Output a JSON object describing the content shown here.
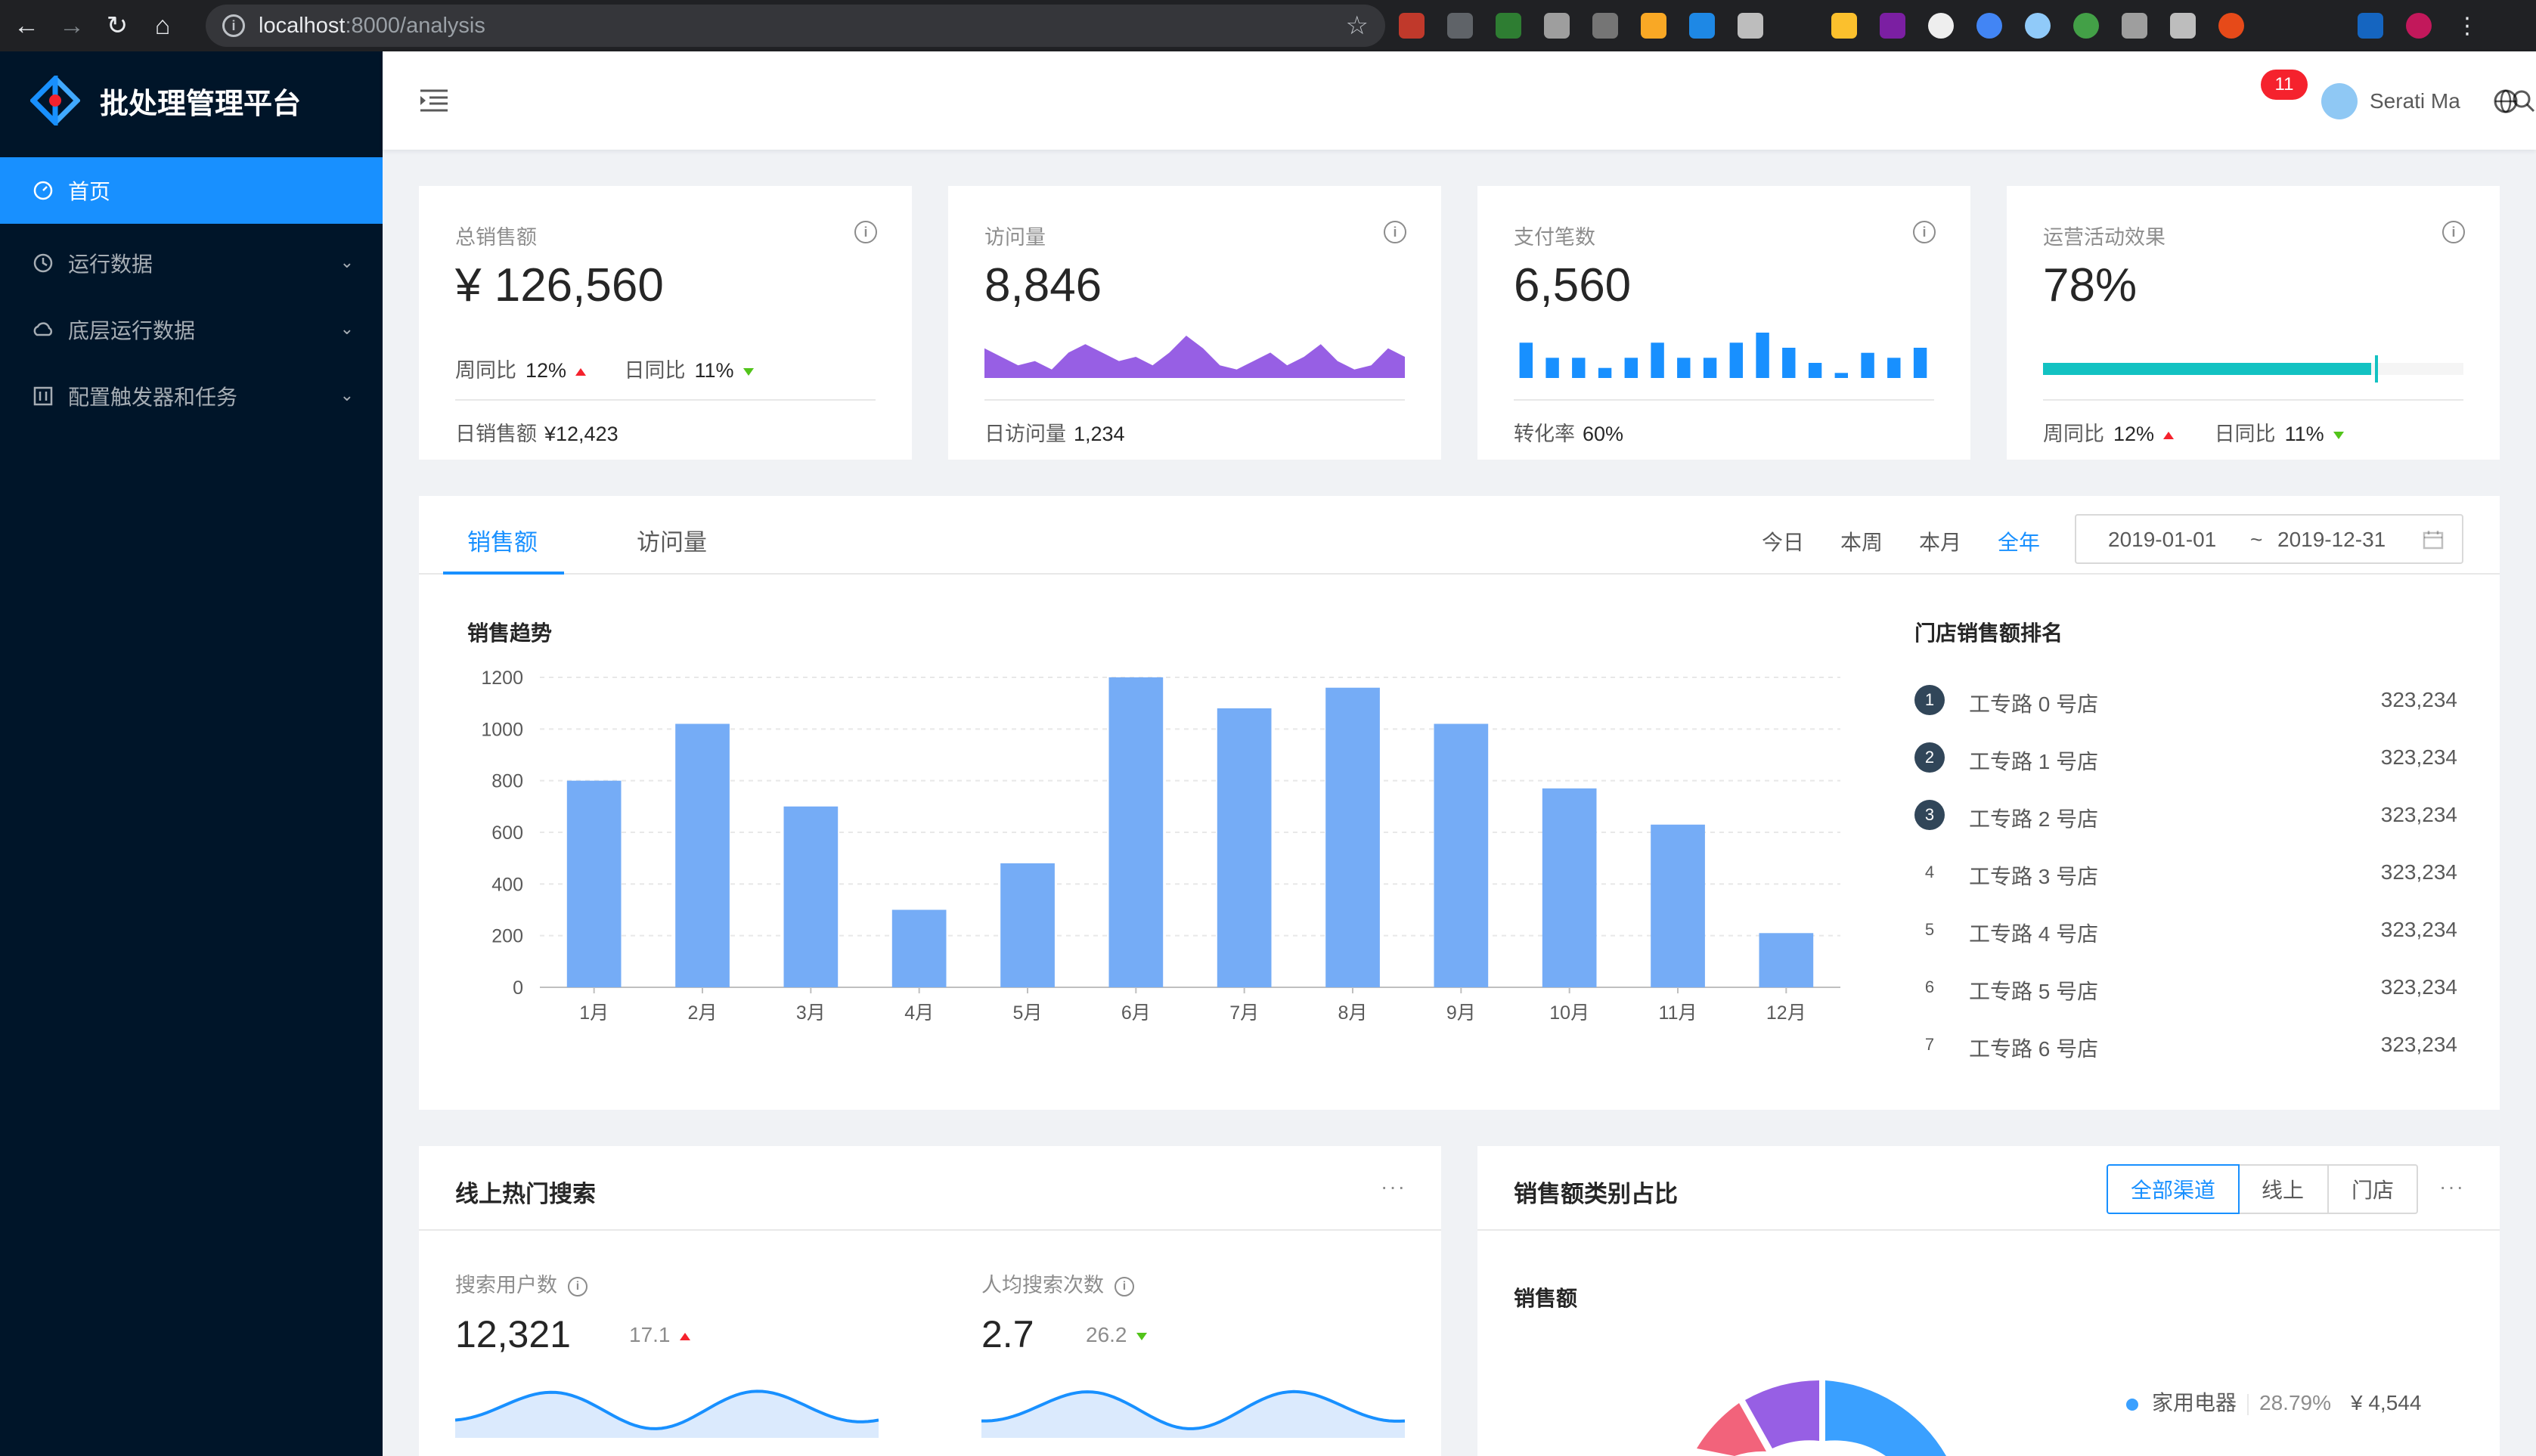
{
  "browser": {
    "url_host": "localhost",
    "url_path": ":8000/analysis"
  },
  "sidebar": {
    "title": "批处理管理平台",
    "items": [
      {
        "label": "首页",
        "icon": "dashboard-icon"
      },
      {
        "label": "运行数据",
        "icon": "clock-icon"
      },
      {
        "label": "底层运行数据",
        "icon": "cloud-icon"
      },
      {
        "label": "配置触发器和任务",
        "icon": "control-icon"
      }
    ]
  },
  "header": {
    "notification_count": "11",
    "username": "Serati Ma"
  },
  "stats": [
    {
      "title": "总销售额",
      "value": "¥ 126,560",
      "wow_label": "周同比",
      "wow_value": "12%",
      "dod_label": "日同比",
      "dod_value": "11%",
      "footer_label": "日销售额",
      "footer_value": "¥12,423"
    },
    {
      "title": "访问量",
      "value": "8,846",
      "footer_label": "日访问量",
      "footer_value": "1,234"
    },
    {
      "title": "支付笔数",
      "value": "6,560",
      "footer_label": "转化率",
      "footer_value": "60%"
    },
    {
      "title": "运营活动效果",
      "value": "78%",
      "progress": 0.78,
      "wow_label": "周同比",
      "wow_value": "12%",
      "dod_label": "日同比",
      "dod_value": "11%"
    }
  ],
  "visits_area": [
    7,
    5,
    3,
    4,
    2,
    6,
    8,
    6,
    4,
    5,
    3,
    6,
    10,
    7,
    3,
    2,
    4,
    6,
    3,
    5,
    8,
    4,
    2,
    3,
    7,
    5
  ],
  "payments_bars": [
    7,
    4,
    4,
    2,
    4,
    7,
    4,
    4,
    7,
    9,
    6,
    3,
    1,
    5,
    4,
    6
  ],
  "sales": {
    "tabs": [
      "销售额",
      "访问量"
    ],
    "ranges": [
      "今日",
      "本周",
      "本月",
      "全年"
    ],
    "date_start": "2019-01-01",
    "date_sep": "~",
    "date_end": "2019-12-31",
    "trend_title": "销售趋势",
    "ranking_title": "门店销售额排名",
    "ranking": [
      {
        "rank": "1",
        "name": "工专路 0 号店",
        "value": "323,234"
      },
      {
        "rank": "2",
        "name": "工专路 1 号店",
        "value": "323,234"
      },
      {
        "rank": "3",
        "name": "工专路 2 号店",
        "value": "323,234"
      },
      {
        "rank": "4",
        "name": "工专路 3 号店",
        "value": "323,234"
      },
      {
        "rank": "5",
        "name": "工专路 4 号店",
        "value": "323,234"
      },
      {
        "rank": "6",
        "name": "工专路 5 号店",
        "value": "323,234"
      },
      {
        "rank": "7",
        "name": "工专路 6 号店",
        "value": "323,234"
      }
    ]
  },
  "chart_data": {
    "type": "bar",
    "categories": [
      "1月",
      "2月",
      "3月",
      "4月",
      "5月",
      "6月",
      "7月",
      "8月",
      "9月",
      "10月",
      "11月",
      "12月"
    ],
    "values": [
      800,
      1020,
      700,
      300,
      480,
      1200,
      1080,
      1160,
      1020,
      770,
      630,
      210
    ],
    "title": "销售趋势",
    "ylim": [
      0,
      1200
    ],
    "yticks": [
      0,
      200,
      400,
      600,
      800,
      1000,
      1200
    ],
    "color": "#75acf6",
    "grid": true
  },
  "hot_search": {
    "title": "线上热门搜索",
    "more": "···",
    "metrics": [
      {
        "title": "搜索用户数",
        "value": "12,321",
        "sub": "17.1",
        "trend": "up"
      },
      {
        "title": "人均搜索次数",
        "value": "2.7",
        "sub": "26.2",
        "trend": "down"
      }
    ]
  },
  "category": {
    "title": "销售额类别占比",
    "more": "···",
    "segments": [
      "全部渠道",
      "线上",
      "门店"
    ],
    "subtitle": "销售额",
    "legend": [
      {
        "name": "家用电器",
        "percent": "28.79%",
        "value": "¥ 4,544",
        "color": "#3aa0ff"
      }
    ]
  },
  "colors": {
    "primary": "#1890ff",
    "sidebar_bg": "#001529",
    "purple": "#975fe4",
    "teal": "#13c2c2",
    "up": "#f5222d",
    "down": "#52c41a"
  }
}
